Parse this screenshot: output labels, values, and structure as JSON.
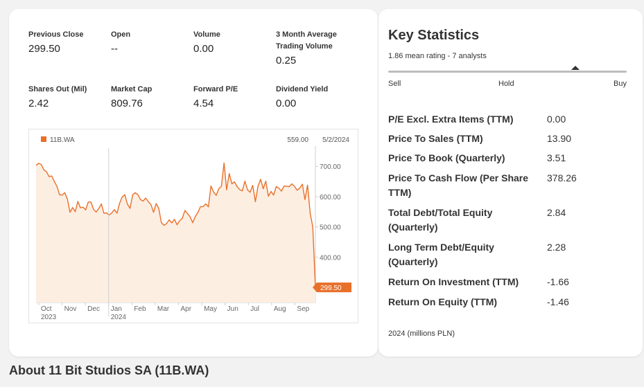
{
  "stats": [
    {
      "label": "Previous Close",
      "value": "299.50"
    },
    {
      "label": "Open",
      "value": "--"
    },
    {
      "label": "Volume",
      "value": "0.00"
    },
    {
      "label": "3 Month Average Trading Volume",
      "value": "0.25"
    },
    {
      "label": "Shares Out (Mil)",
      "value": "2.42"
    },
    {
      "label": "Market Cap",
      "value": "809.76"
    },
    {
      "label": "Forward P/E",
      "value": "4.54"
    },
    {
      "label": "Dividend Yield",
      "value": "0.00"
    }
  ],
  "chart": {
    "legend_label": "11B.WA",
    "header_value": "559.00",
    "header_date": "5/2/2024",
    "last_label": "299.50"
  },
  "chart_data": {
    "type": "area",
    "series": [
      {
        "name": "11B.WA",
        "color": "#e8702a"
      }
    ],
    "x_labels": [
      "Oct",
      "Nov",
      "Dec",
      "Jan",
      "Feb",
      "Mar",
      "Apr",
      "May",
      "Jun",
      "Jul",
      "Aug",
      "Sep"
    ],
    "year_labels": [
      "2023",
      "2024"
    ],
    "yticks": [
      "700.00",
      "600.00",
      "500.00",
      "400.00"
    ],
    "ylim": [
      250,
      760
    ],
    "values": [
      703,
      710,
      706,
      688,
      682,
      666,
      668,
      650,
      634,
      606,
      605,
      613,
      592,
      548,
      564,
      550,
      584,
      563,
      565,
      556,
      582,
      582,
      558,
      549,
      560,
      576,
      545,
      546,
      539,
      546,
      557,
      545,
      578,
      599,
      606,
      575,
      561,
      606,
      613,
      606,
      590,
      585,
      595,
      583,
      574,
      548,
      577,
      561,
      514,
      505,
      511,
      523,
      513,
      525,
      507,
      520,
      528,
      554,
      544,
      533,
      514,
      534,
      548,
      567,
      567,
      576,
      566,
      635,
      615,
      604,
      626,
      634,
      711,
      622,
      676,
      642,
      649,
      633,
      623,
      619,
      651,
      622,
      614,
      637,
      583,
      634,
      657,
      626,
      651,
      601,
      617,
      605,
      633,
      628,
      618,
      635,
      634,
      633,
      642,
      634,
      621,
      628,
      641,
      590,
      638,
      544,
      500,
      300
    ]
  },
  "key_stats": {
    "title": "Key Statistics",
    "rating_text": "1.86 mean rating - 7 analysts",
    "rating_value": 1.86,
    "scale_labels": [
      "Sell",
      "Hold",
      "Buy"
    ],
    "rows": [
      {
        "name": "P/E Excl. Extra Items (TTM)",
        "value": "0.00"
      },
      {
        "name": "Price To Sales (TTM)",
        "value": "13.90"
      },
      {
        "name": "Price To Book (Quarterly)",
        "value": "3.51"
      },
      {
        "name": "Price To Cash Flow (Per Share TTM)",
        "value": "378.26"
      },
      {
        "name": "Total Debt/Total Equity (Quarterly)",
        "value": "2.84"
      },
      {
        "name": "Long Term Debt/Equity (Quarterly)",
        "value": "2.28"
      },
      {
        "name": "Return On Investment (TTM)",
        "value": "-1.66"
      },
      {
        "name": "Return On Equity (TTM)",
        "value": "-1.46"
      }
    ],
    "footnote": "2024 (millions PLN)"
  },
  "about_title": "About 11 Bit Studios SA (11B.WA)",
  "colors": {
    "accent": "#e8702a",
    "area_fill": "#fdeee2"
  }
}
